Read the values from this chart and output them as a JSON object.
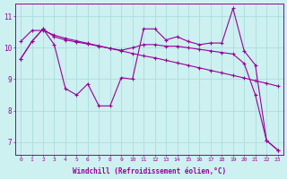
{
  "xlabel": "Windchill (Refroidissement éolien,°C)",
  "ylabel": "",
  "background_color": "#cdf0f0",
  "line_color": "#990099",
  "grid_color": "#aadddd",
  "xlim_min": -0.5,
  "xlim_max": 23.5,
  "ylim_min": 6.6,
  "ylim_max": 11.4,
  "yticks": [
    7,
    8,
    9,
    10,
    11
  ],
  "xticks": [
    0,
    1,
    2,
    3,
    4,
    5,
    6,
    7,
    8,
    9,
    10,
    11,
    12,
    13,
    14,
    15,
    16,
    17,
    18,
    19,
    20,
    21,
    22,
    23
  ],
  "hours": [
    0,
    1,
    2,
    3,
    4,
    5,
    6,
    7,
    8,
    9,
    10,
    11,
    12,
    13,
    14,
    15,
    16,
    17,
    18,
    19,
    20,
    21,
    22,
    23
  ],
  "line_jagged": [
    9.65,
    10.2,
    10.6,
    10.1,
    8.7,
    8.5,
    8.85,
    8.15,
    8.15,
    9.05,
    9.0,
    10.6,
    10.6,
    10.25,
    10.35,
    10.2,
    10.1,
    10.15,
    10.15,
    11.25,
    9.9,
    9.45,
    7.05,
    6.75
  ],
  "line_smooth1": [
    10.2,
    10.55,
    10.55,
    10.4,
    10.3,
    10.22,
    10.14,
    10.06,
    9.98,
    9.9,
    9.82,
    9.74,
    9.68,
    9.6,
    9.52,
    9.44,
    9.36,
    9.28,
    9.2,
    9.12,
    9.04,
    8.95,
    8.87,
    8.78
  ],
  "line_smooth2": [
    9.65,
    10.2,
    10.6,
    10.35,
    10.25,
    10.18,
    10.12,
    10.05,
    9.98,
    9.92,
    10.0,
    10.1,
    10.1,
    10.05,
    10.05,
    10.0,
    9.95,
    9.9,
    9.85,
    9.8,
    9.5,
    8.5,
    7.05,
    6.75
  ]
}
